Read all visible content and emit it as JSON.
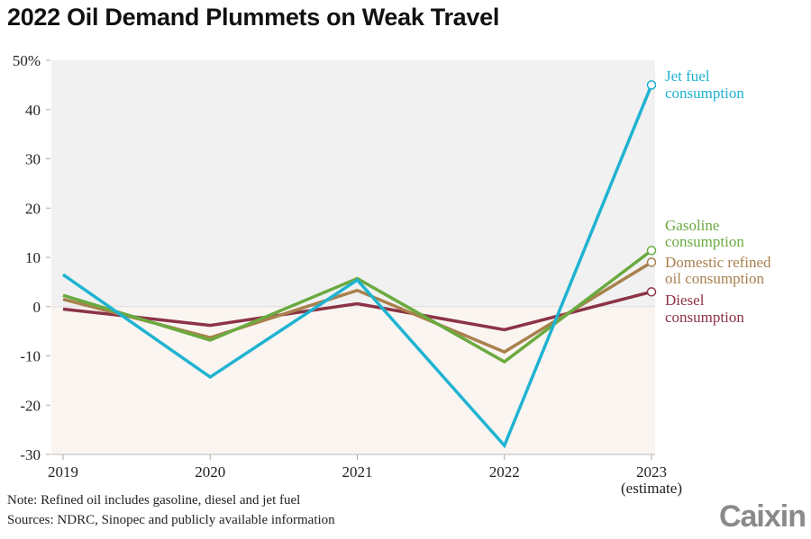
{
  "title": "2022 Oil Demand Plummets on Weak Travel",
  "note": "Note: Refined oil includes gasoline, diesel and jet fuel",
  "sources": "Sources: NDRC, Sinopec and publicly available information",
  "logo": "Caixin",
  "chart_data": {
    "type": "line",
    "title": "2022 Oil Demand Plummets on Weak Travel",
    "categories": [
      "2019",
      "2020",
      "2021",
      "2022",
      "2023"
    ],
    "category_sublabels": [
      "",
      "",
      "",
      "",
      "(estimate)"
    ],
    "ylim": [
      -30,
      50
    ],
    "yticks": [
      -30,
      -20,
      -10,
      0,
      10,
      20,
      30,
      40,
      50
    ],
    "ytick_labels": [
      "-30",
      "-20",
      "-10",
      "0",
      "10",
      "20",
      "30",
      "40",
      "50%"
    ],
    "series": [
      {
        "name": "Jet fuel consumption",
        "label_lines": [
          "Jet fuel",
          "consumption"
        ],
        "color": "#1fb3d1",
        "values": [
          6.5,
          -14.3,
          5.4,
          -28.2,
          45
        ]
      },
      {
        "name": "Gasoline consumption",
        "label_lines": [
          "Gasoline",
          "consumption"
        ],
        "color": "#6aaa3f",
        "values": [
          2.3,
          -6.8,
          5.7,
          -11.2,
          11.4
        ]
      },
      {
        "name": "Domestic refined oil consumption",
        "label_lines": [
          "Domestic refined",
          "oil consumption"
        ],
        "color": "#a9804d",
        "values": [
          1.5,
          -6.3,
          3.3,
          -9.2,
          9
        ]
      },
      {
        "name": "Diesel consumption",
        "label_lines": [
          "Diesel",
          "consumption"
        ],
        "color": "#8c3346",
        "values": [
          -0.5,
          -3.8,
          0.6,
          -4.7,
          3
        ]
      }
    ],
    "background": {
      "positive": "#f1f1f1",
      "negative": "#faf5f1"
    },
    "legend": "right, direct labels at end points"
  }
}
